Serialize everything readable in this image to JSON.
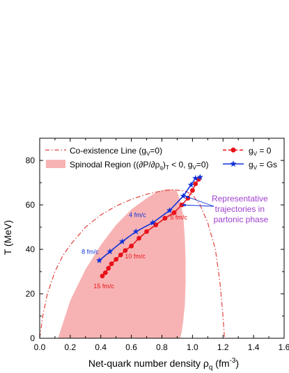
{
  "chart_data": {
    "type": "line",
    "xlabel": "Net-quark number density ρ",
    "xlabel_sub": "q",
    "xlabel_unit": "(fm",
    "xlabel_unit_sup": "-3",
    "xlabel_unit_close": ")",
    "ylabel": "T (MeV)",
    "xlim": [
      0.0,
      1.6
    ],
    "ylim": [
      0,
      90
    ],
    "x_ticks": [
      0.0,
      0.2,
      0.4,
      0.6,
      0.8,
      1.0,
      1.2,
      1.4,
      1.6
    ],
    "x_tick_labels": [
      "0.0",
      "0.2",
      "0.4",
      "0.6",
      "0.8",
      "1.0",
      "1.2",
      "1.4",
      "1.6"
    ],
    "y_ticks": [
      0,
      20,
      40,
      60,
      80
    ],
    "y_tick_labels": [
      "0",
      "20",
      "40",
      "60",
      "80"
    ],
    "legend_placement": "top",
    "colors": {
      "coexistence": "#e0403a",
      "spinodal_fill": "#f7b3b3",
      "gv0": "#e8121a",
      "gvGs": "#1030d8",
      "annotation": "#a040d0"
    },
    "legend": {
      "coexistence_label": "Co-existence Line (g",
      "coexistence_sub": "V",
      "coexistence_rest": "=0)",
      "spinodal_label": "Spinodal Region ((∂P/∂ρ",
      "spinodal_sub1": "q",
      "spinodal_mid": ")",
      "spinodal_sub2": "T",
      "spinodal_rest": " < 0, g",
      "spinodal_sub3": "V",
      "spinodal_end": "=0)",
      "gv0_label": "g",
      "gv0_sub": "V",
      "gv0_rest": " = 0",
      "gvGs_label": "g",
      "gvGs_sub": "V",
      "gvGs_rest": " = Gs"
    },
    "coexistence_line": {
      "x": [
        0.0,
        0.02,
        0.05,
        0.1,
        0.15,
        0.2,
        0.3,
        0.4,
        0.5,
        0.6,
        0.7,
        0.8,
        0.87,
        0.95,
        1.0,
        1.05,
        1.1,
        1.15,
        1.18,
        1.2,
        1.21
      ],
      "y": [
        0,
        10,
        20,
        30,
        37,
        42,
        50,
        55.5,
        59.5,
        62.5,
        64.8,
        66.3,
        66.8,
        66.3,
        64.5,
        60,
        52,
        40,
        25,
        10,
        0
      ]
    },
    "spinodal_region": {
      "left_x": [
        0.12,
        0.2,
        0.3,
        0.4,
        0.5,
        0.6,
        0.7,
        0.77,
        0.83
      ],
      "left_y": [
        0,
        17,
        31,
        42,
        51,
        58,
        63,
        66,
        67
      ],
      "right_x": [
        0.87,
        0.9,
        0.92,
        0.94,
        0.95,
        0.955,
        0.955,
        0.95,
        0.94,
        0.93,
        0.92
      ],
      "right_y": [
        67,
        66,
        62,
        55,
        45,
        35,
        25,
        15,
        8,
        3,
        0
      ]
    },
    "series": [
      {
        "name": "gV = 0",
        "x": [
          0.41,
          0.43,
          0.45,
          0.47,
          0.5,
          0.53,
          0.56,
          0.6,
          0.65,
          0.7,
          0.76,
          0.82,
          0.88,
          0.93,
          0.97,
          1.0,
          1.02,
          1.04
        ],
        "y": [
          28,
          29.5,
          31.5,
          33.5,
          35.5,
          37.5,
          39.5,
          41.5,
          45,
          48,
          51,
          54,
          56.5,
          60,
          63,
          66.5,
          69.5,
          71.5
        ]
      },
      {
        "name": "gV = Gs",
        "x": [
          0.39,
          0.46,
          0.54,
          0.63,
          0.74,
          0.85,
          0.94,
          0.99,
          1.02,
          1.05
        ],
        "y": [
          35,
          39,
          43.5,
          48,
          52,
          57.5,
          64,
          69,
          72,
          72.5
        ]
      }
    ],
    "time_labels": [
      {
        "text": "4 fm/c",
        "x": 0.64,
        "y": 54.5,
        "color": "gvGs"
      },
      {
        "text": "5 fm/c",
        "x": 0.91,
        "y": 53.5,
        "color": "gv0"
      },
      {
        "text": "8 fm/c",
        "x": 0.33,
        "y": 38,
        "color": "gvGs"
      },
      {
        "text": "10 fm/c",
        "x": 0.625,
        "y": 36,
        "color": "gv0"
      },
      {
        "text": "15 fm/c",
        "x": 0.42,
        "y": 22.5,
        "color": "gv0"
      }
    ],
    "annotation": {
      "lines": [
        "Representative",
        "trajectories in",
        "partonic phase"
      ]
    }
  }
}
